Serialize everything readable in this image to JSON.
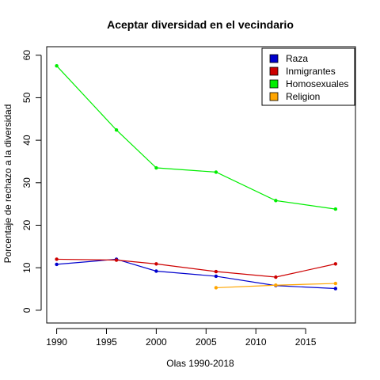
{
  "chart_data": {
    "type": "line",
    "title": "Aceptar diversidad en el vecindario",
    "xlabel": "Olas 1990-2018",
    "ylabel": "Porcentaje de rechazo a la diversidad",
    "xlim": [
      1989,
      2020
    ],
    "ylim": [
      -3,
      62
    ],
    "xticks": [
      "1990",
      "1995",
      "2000",
      "2005",
      "2010",
      "2015"
    ],
    "yticks": [
      "0",
      "10",
      "20",
      "30",
      "40",
      "50",
      "60"
    ],
    "grid": false,
    "legend_position": "top-right",
    "series": [
      {
        "name": "Raza",
        "color": "#0000CD",
        "x": [
          1990,
          1996,
          2000,
          2006,
          2012,
          2018
        ],
        "y": [
          10.8,
          12.0,
          9.2,
          8.0,
          5.8,
          5.1
        ]
      },
      {
        "name": "Inmigrantes",
        "color": "#CD0000",
        "x": [
          1990,
          1996,
          2000,
          2006,
          2012,
          2018
        ],
        "y": [
          12.0,
          11.8,
          10.9,
          9.1,
          7.8,
          10.9
        ]
      },
      {
        "name": "Homosexuales",
        "color": "#00EE00",
        "x": [
          1990,
          1996,
          2000,
          2006,
          2012,
          2018
        ],
        "y": [
          57.5,
          42.4,
          33.5,
          32.5,
          25.8,
          23.8
        ]
      },
      {
        "name": "Religion",
        "color": "#FFA500",
        "x": [
          2006,
          2012,
          2018
        ],
        "y": [
          5.3,
          5.9,
          6.3
        ]
      }
    ]
  }
}
